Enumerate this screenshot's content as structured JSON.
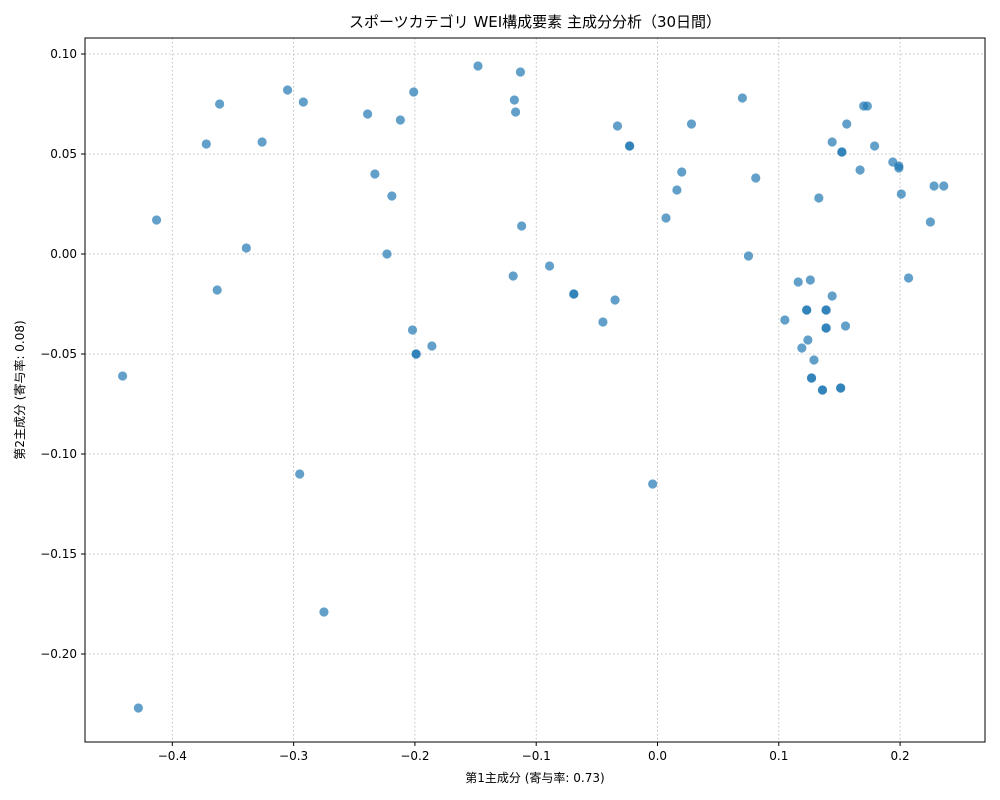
{
  "chart_data": {
    "type": "scatter",
    "title": "スポーツカテゴリ WEI構成要素 主成分分析（30日間）",
    "xlabel": "第1主成分 (寄与率: 0.73)",
    "ylabel": "第2主成分 (寄与率: 0.08)",
    "xlim": [
      -0.472,
      0.27
    ],
    "ylim": [
      -0.244,
      0.108
    ],
    "xticks": [
      -0.4,
      -0.3,
      -0.2,
      -0.1,
      0.0,
      0.1,
      0.2
    ],
    "xtick_labels": [
      "−0.4",
      "−0.3",
      "−0.2",
      "−0.1",
      "0.0",
      "0.1",
      "0.2"
    ],
    "yticks": [
      -0.2,
      -0.15,
      -0.1,
      -0.05,
      0.0,
      0.05,
      0.1
    ],
    "ytick_labels": [
      "−0.20",
      "−0.15",
      "−0.10",
      "−0.05",
      "0.00",
      "0.05",
      "0.10"
    ],
    "grid": true,
    "color": "#1f77b4",
    "points": [
      [
        -0.441,
        -0.061
      ],
      [
        -0.428,
        -0.227
      ],
      [
        -0.413,
        0.017
      ],
      [
        -0.372,
        0.055
      ],
      [
        -0.363,
        -0.018
      ],
      [
        -0.361,
        0.075
      ],
      [
        -0.339,
        0.003
      ],
      [
        -0.326,
        0.056
      ],
      [
        -0.305,
        0.082
      ],
      [
        -0.295,
        -0.11
      ],
      [
        -0.292,
        0.076
      ],
      [
        -0.275,
        -0.179
      ],
      [
        -0.239,
        0.07
      ],
      [
        -0.233,
        0.04
      ],
      [
        -0.223,
        0.0
      ],
      [
        -0.219,
        0.029
      ],
      [
        -0.212,
        0.067
      ],
      [
        -0.201,
        0.081
      ],
      [
        -0.202,
        -0.038
      ],
      [
        -0.199,
        -0.05
      ],
      [
        -0.199,
        -0.05
      ],
      [
        -0.186,
        -0.046
      ],
      [
        -0.148,
        0.094
      ],
      [
        -0.118,
        0.077
      ],
      [
        -0.117,
        0.071
      ],
      [
        -0.119,
        -0.011
      ],
      [
        -0.113,
        0.091
      ],
      [
        -0.112,
        0.014
      ],
      [
        -0.089,
        -0.006
      ],
      [
        -0.069,
        -0.02
      ],
      [
        -0.069,
        -0.02
      ],
      [
        -0.045,
        -0.034
      ],
      [
        -0.035,
        -0.023
      ],
      [
        -0.033,
        0.064
      ],
      [
        -0.023,
        0.054
      ],
      [
        -0.023,
        0.054
      ],
      [
        -0.004,
        -0.115
      ],
      [
        0.007,
        0.018
      ],
      [
        0.016,
        0.032
      ],
      [
        0.02,
        0.041
      ],
      [
        0.028,
        0.065
      ],
      [
        0.07,
        0.078
      ],
      [
        0.075,
        -0.001
      ],
      [
        0.081,
        0.038
      ],
      [
        0.105,
        -0.033
      ],
      [
        0.116,
        -0.014
      ],
      [
        0.119,
        -0.047
      ],
      [
        0.123,
        -0.028
      ],
      [
        0.123,
        -0.028
      ],
      [
        0.124,
        -0.043
      ],
      [
        0.126,
        -0.013
      ],
      [
        0.127,
        -0.062
      ],
      [
        0.127,
        -0.062
      ],
      [
        0.129,
        -0.053
      ],
      [
        0.133,
        0.028
      ],
      [
        0.136,
        -0.068
      ],
      [
        0.136,
        -0.068
      ],
      [
        0.139,
        -0.028
      ],
      [
        0.139,
        -0.028
      ],
      [
        0.139,
        -0.037
      ],
      [
        0.139,
        -0.037
      ],
      [
        0.144,
        -0.021
      ],
      [
        0.144,
        0.056
      ],
      [
        0.151,
        -0.067
      ],
      [
        0.151,
        -0.067
      ],
      [
        0.152,
        0.051
      ],
      [
        0.152,
        0.051
      ],
      [
        0.155,
        -0.036
      ],
      [
        0.156,
        0.065
      ],
      [
        0.167,
        0.042
      ],
      [
        0.17,
        0.074
      ],
      [
        0.173,
        0.074
      ],
      [
        0.179,
        0.054
      ],
      [
        0.194,
        0.046
      ],
      [
        0.199,
        0.043
      ],
      [
        0.199,
        0.044
      ],
      [
        0.201,
        0.03
      ],
      [
        0.207,
        -0.012
      ],
      [
        0.225,
        0.016
      ],
      [
        0.228,
        0.034
      ],
      [
        0.236,
        0.034
      ]
    ]
  }
}
